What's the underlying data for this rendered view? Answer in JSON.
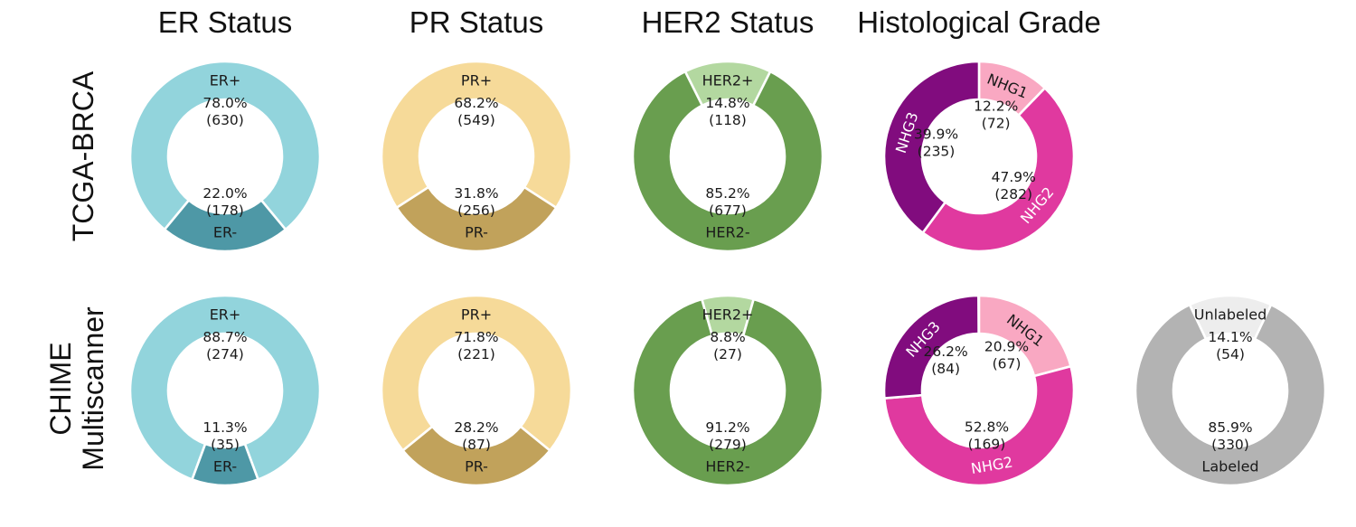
{
  "column_titles": [
    "ER Status",
    "PR Status",
    "HER2 Status",
    "Histological Grade"
  ],
  "row_labels": [
    {
      "lines": [
        "TCGA-BRCA"
      ]
    },
    {
      "lines": [
        "CHIME",
        "Multiscanner"
      ]
    }
  ],
  "text_color": "#1a1a1a",
  "chart_data": [
    {
      "type": "donut",
      "row": 0,
      "col": 0,
      "title": "ER Status",
      "center_first": true,
      "rotate_labels": false,
      "slices": [
        {
          "label": "ER+",
          "pct": 78.0,
          "n": 630,
          "color": "#92d4dc",
          "label_color": "#1a1a1a"
        },
        {
          "label": "ER-",
          "pct": 22.0,
          "n": 178,
          "color": "#4e98a6",
          "label_color": "#1a1a1a"
        }
      ]
    },
    {
      "type": "donut",
      "row": 0,
      "col": 1,
      "title": "PR Status",
      "center_first": true,
      "rotate_labels": false,
      "slices": [
        {
          "label": "PR+",
          "pct": 68.2,
          "n": 549,
          "color": "#f6da99",
          "label_color": "#1a1a1a"
        },
        {
          "label": "PR-",
          "pct": 31.8,
          "n": 256,
          "color": "#c1a25b",
          "label_color": "#1a1a1a"
        }
      ]
    },
    {
      "type": "donut",
      "row": 0,
      "col": 2,
      "title": "HER2 Status",
      "center_first": true,
      "rotate_labels": false,
      "slices": [
        {
          "label": "HER2+",
          "pct": 14.8,
          "n": 118,
          "color": "#b3d8a0",
          "label_color": "#1a1a1a"
        },
        {
          "label": "HER2-",
          "pct": 85.2,
          "n": 677,
          "color": "#699e4f",
          "label_color": "#1a1a1a"
        }
      ]
    },
    {
      "type": "donut",
      "row": 0,
      "col": 3,
      "title": "Histological Grade",
      "center_first": false,
      "rotate_labels": true,
      "slices": [
        {
          "label": "NHG1",
          "pct": 12.2,
          "n": 72,
          "color": "#f9a8c2",
          "label_color": "#1a1a1a"
        },
        {
          "label": "NHG2",
          "pct": 47.9,
          "n": 282,
          "color": "#e0399f",
          "label_color": "#ffffff"
        },
        {
          "label": "NHG3",
          "pct": 39.9,
          "n": 235,
          "color": "#810c7e",
          "label_color": "#ffffff"
        }
      ]
    },
    {
      "type": "donut",
      "row": 1,
      "col": 0,
      "title": "ER Status",
      "center_first": true,
      "rotate_labels": false,
      "slices": [
        {
          "label": "ER+",
          "pct": 88.7,
          "n": 274,
          "color": "#92d4dc",
          "label_color": "#1a1a1a"
        },
        {
          "label": "ER-",
          "pct": 11.3,
          "n": 35,
          "color": "#4e98a6",
          "label_color": "#1a1a1a"
        }
      ]
    },
    {
      "type": "donut",
      "row": 1,
      "col": 1,
      "title": "PR Status",
      "center_first": true,
      "rotate_labels": false,
      "slices": [
        {
          "label": "PR+",
          "pct": 71.8,
          "n": 221,
          "color": "#f6da99",
          "label_color": "#1a1a1a"
        },
        {
          "label": "PR-",
          "pct": 28.2,
          "n": 87,
          "color": "#c1a25b",
          "label_color": "#1a1a1a"
        }
      ]
    },
    {
      "type": "donut",
      "row": 1,
      "col": 2,
      "title": "HER2 Status",
      "center_first": true,
      "rotate_labels": false,
      "slices": [
        {
          "label": "HER2+",
          "pct": 8.8,
          "n": 27,
          "color": "#b3d8a0",
          "label_color": "#1a1a1a"
        },
        {
          "label": "HER2-",
          "pct": 91.2,
          "n": 279,
          "color": "#699e4f",
          "label_color": "#1a1a1a"
        }
      ]
    },
    {
      "type": "donut",
      "row": 1,
      "col": 3,
      "title": "Histological Grade",
      "center_first": false,
      "rotate_labels": true,
      "slices": [
        {
          "label": "NHG1",
          "pct": 20.9,
          "n": 67,
          "color": "#f9a8c2",
          "label_color": "#1a1a1a"
        },
        {
          "label": "NHG2",
          "pct": 52.8,
          "n": 169,
          "color": "#e0399f",
          "label_color": "#ffffff"
        },
        {
          "label": "NHG3",
          "pct": 26.2,
          "n": 84,
          "color": "#810c7e",
          "label_color": "#ffffff"
        }
      ]
    },
    {
      "type": "donut",
      "row": 1,
      "col": 4,
      "title": "",
      "center_first": true,
      "rotate_labels": false,
      "slices": [
        {
          "label": "Unlabeled",
          "pct": 14.1,
          "n": 54,
          "color": "#ededed",
          "label_color": "#1a1a1a"
        },
        {
          "label": "Labeled",
          "pct": 85.9,
          "n": 330,
          "color": "#b3b3b3",
          "label_color": "#1a1a1a"
        }
      ]
    }
  ]
}
